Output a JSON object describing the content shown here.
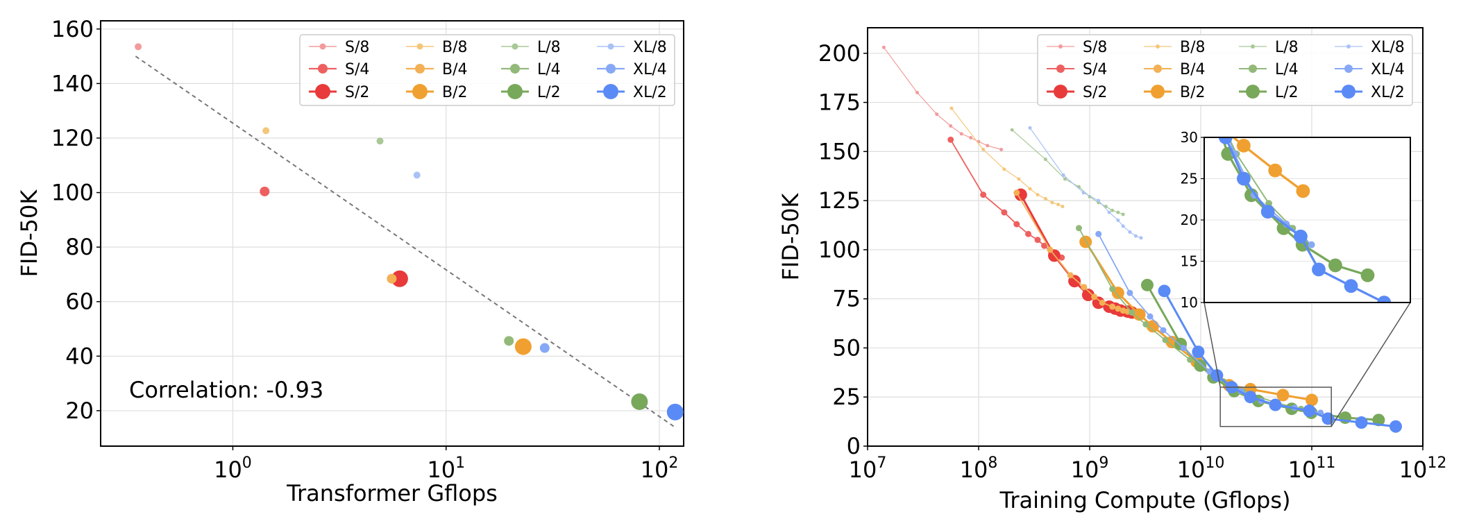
{
  "legend_labels": {
    "S8": "S/8",
    "S4": "S/4",
    "S2": "S/2",
    "B8": "B/8",
    "B4": "B/4",
    "B2": "B/2",
    "L8": "L/8",
    "L4": "L/4",
    "L2": "L/2",
    "XL8": "XL/8",
    "XL4": "XL/4",
    "XL2": "XL/2"
  },
  "colors": {
    "S": [
      "#f29b9b",
      "#ee6060",
      "#e83a3a"
    ],
    "B": [
      "#f5c67a",
      "#f3b055",
      "#f0a030"
    ],
    "L": [
      "#a8c896",
      "#92b97a",
      "#78a85a"
    ],
    "XL": [
      "#a9c2f5",
      "#86a8f5",
      "#5a8af5"
    ]
  },
  "chart_data": [
    {
      "type": "scatter",
      "xlabel": "Transformer Gflops",
      "ylabel": "FID-50K",
      "xscale": "log",
      "xlim": [
        0.24,
        130
      ],
      "ylim": [
        7,
        163
      ],
      "yticks": [
        20,
        40,
        60,
        80,
        100,
        120,
        140,
        160
      ],
      "xticks": [
        {
          "base": "10",
          "exp": "0",
          "value": 1
        },
        {
          "base": "10",
          "exp": "1",
          "value": 10
        },
        {
          "base": "10",
          "exp": "2",
          "value": 100
        }
      ],
      "grid": true,
      "legend_position": "top-right",
      "annotation": "Correlation: -0.93",
      "trendline": [
        [
          0.35,
          150
        ],
        [
          118,
          14
        ]
      ],
      "points": [
        {
          "model": "S/8",
          "x": 0.36,
          "y": 153.5
        },
        {
          "model": "S/4",
          "x": 1.41,
          "y": 100.4
        },
        {
          "model": "S/2",
          "x": 6.06,
          "y": 68.4
        },
        {
          "model": "B/8",
          "x": 1.43,
          "y": 122.7
        },
        {
          "model": "B/4",
          "x": 5.56,
          "y": 68.4
        },
        {
          "model": "B/2",
          "x": 23.01,
          "y": 43.5
        },
        {
          "model": "L/8",
          "x": 4.9,
          "y": 118.9
        },
        {
          "model": "L/4",
          "x": 19.7,
          "y": 45.6
        },
        {
          "model": "L/2",
          "x": 80.7,
          "y": 23.3
        },
        {
          "model": "XL/8",
          "x": 7.3,
          "y": 106.4
        },
        {
          "model": "XL/4",
          "x": 29.0,
          "y": 43.0
        },
        {
          "model": "XL/2",
          "x": 118.6,
          "y": 19.5
        }
      ]
    },
    {
      "type": "line",
      "xlabel": "Training Compute (Gflops)",
      "ylabel": "FID-50K",
      "xscale": "log",
      "xlim": [
        10000000.0,
        1000000000000.0
      ],
      "ylim": [
        0,
        213
      ],
      "yticks": [
        0,
        25,
        50,
        75,
        100,
        125,
        150,
        175,
        200
      ],
      "xticks": [
        {
          "base": "10",
          "exp": "7",
          "value": 10000000.0
        },
        {
          "base": "10",
          "exp": "8",
          "value": 100000000.0
        },
        {
          "base": "10",
          "exp": "9",
          "value": 1000000000.0
        },
        {
          "base": "10",
          "exp": "10",
          "value": 10000000000.0
        },
        {
          "base": "10",
          "exp": "11",
          "value": 100000000000.0
        },
        {
          "base": "10",
          "exp": "12",
          "value": 1000000000000.0
        }
      ],
      "grid": true,
      "legend_position": "top-right",
      "inset": {
        "xlim": [
          12000000000.0,
          1000000000000.0
        ],
        "ylim": [
          10,
          30
        ],
        "yticks": [
          10,
          15,
          20,
          25,
          30
        ],
        "zoom_box": {
          "x": [
            15000000000.0,
            150000000000.0
          ],
          "y": [
            10,
            30
          ]
        }
      },
      "series": [
        {
          "name": "S/8",
          "x": [
            14000000.0,
            28000000.0,
            42000000.0,
            56000000.0,
            70000000.0,
            85000000.0,
            100000000.0,
            120000000.0,
            160000000.0
          ],
          "y": [
            203.0,
            180.0,
            169.0,
            163.0,
            159.0,
            157.0,
            155.0,
            153.0,
            151.0
          ]
        },
        {
          "name": "S/4",
          "x": [
            56000000.0,
            110000000.0,
            170000000.0,
            220000000.0,
            280000000.0,
            340000000.0,
            390000000.0,
            450000000.0,
            500000000.0,
            560000000.0
          ],
          "y": [
            156.0,
            128.0,
            119.0,
            113.0,
            108.0,
            105.0,
            102.0,
            99.0,
            97.0,
            96.0
          ]
        },
        {
          "name": "S/2",
          "x": [
            240000000.0,
            480000000.0,
            730000000.0,
            970000000.0,
            1200000000.0,
            1500000000.0,
            1700000000.0,
            1900000000.0,
            2200000000.0,
            2400000000.0
          ],
          "y": [
            128.0,
            97.0,
            84.0,
            77.0,
            73.0,
            71.0,
            70.0,
            69.0,
            68.5,
            68.0
          ]
        },
        {
          "name": "B/8",
          "x": [
            57000000.0,
            110000000.0,
            170000000.0,
            230000000.0,
            290000000.0,
            340000000.0,
            400000000.0,
            460000000.0,
            520000000.0,
            570000000.0
          ],
          "y": [
            172.0,
            151.0,
            141.0,
            136.0,
            131.0,
            128.0,
            126.0,
            124.0,
            123.0,
            122.0
          ]
        },
        {
          "name": "B/4",
          "x": [
            220000000.0,
            440000000.0,
            670000000.0,
            890000000.0,
            1100000000.0,
            1300000000.0,
            1600000000.0,
            1800000000.0,
            2000000000.0,
            2200000000.0
          ],
          "y": [
            129.0,
            100.0,
            87.0,
            81.0,
            76.0,
            73.0,
            71.0,
            70.0,
            69.0,
            68.5
          ]
        },
        {
          "name": "B/2",
          "x": [
            920000000.0,
            1800000000.0,
            2800000000.0,
            3700000000.0,
            5500000000.0,
            9200000000.0,
            18000000000.0,
            28000000000.0,
            55000000000.0,
            100000000000.0
          ],
          "y": [
            104.0,
            78.0,
            67.0,
            61.0,
            53.0,
            43.0,
            31.0,
            29.0,
            26.0,
            23.5
          ]
        },
        {
          "name": "L/8",
          "x": [
            200000000.0,
            400000000.0,
            600000000.0,
            800000000.0,
            1000000000.0,
            1200000000.0,
            1400000000.0,
            1600000000.0,
            1800000000.0,
            2000000000.0
          ],
          "y": [
            161.0,
            146.0,
            136.0,
            132.0,
            127.0,
            124.0,
            122.0,
            120.0,
            119.0,
            118.0
          ]
        },
        {
          "name": "L/4",
          "x": [
            800000000.0,
            1600000000.0,
            2400000000.0,
            3200000000.0,
            4800000000.0,
            8000000000.0,
            16000000000.0,
            24000000000.0,
            48000000000.0,
            80000000000.0
          ],
          "y": [
            111.0,
            80.0,
            68.0,
            62.0,
            54.0,
            44.0,
            33.0,
            28.0,
            22.0,
            19.0
          ]
        },
        {
          "name": "L/2",
          "x": [
            3300000000.0,
            6600000000.0,
            9900000000.0,
            13000000000.0,
            20000000000.0,
            33000000000.0,
            66000000000.0,
            99000000000.0,
            200000000000.0,
            400000000000.0
          ],
          "y": [
            82.0,
            52.0,
            41.0,
            35.0,
            28.0,
            23.0,
            19.0,
            17.0,
            14.5,
            13.3
          ]
        },
        {
          "name": "XL/8",
          "x": [
            290000000.0,
            580000000.0,
            880000000.0,
            1200000000.0,
            1500000000.0,
            1800000000.0,
            2000000000.0,
            2300000000.0,
            2600000000.0,
            2900000000.0
          ],
          "y": [
            162.0,
            138.0,
            129.0,
            125.0,
            119.0,
            115.0,
            112.0,
            109.0,
            107.0,
            106.0
          ]
        },
        {
          "name": "XL/4",
          "x": [
            1200000000.0,
            2300000000.0,
            3500000000.0,
            4600000000.0,
            7000000000.0,
            12000000000.0,
            23000000000.0,
            35000000000.0,
            70000000000.0,
            120000000000.0
          ],
          "y": [
            108.0,
            78.0,
            66.0,
            59.0,
            50.0,
            38.0,
            28.0,
            23.0,
            19.5,
            17.0
          ]
        },
        {
          "name": "XL/2",
          "x": [
            4700000000.0,
            9500000000.0,
            14000000000.0,
            19000000000.0,
            28000000000.0,
            47000000000.0,
            95000000000.0,
            140000000000.0,
            280000000000.0,
            570000000000.0
          ],
          "y": [
            79.0,
            48.0,
            36.0,
            30.0,
            25.0,
            21.0,
            18.0,
            14.0,
            12.0,
            10.0
          ]
        }
      ]
    }
  ]
}
